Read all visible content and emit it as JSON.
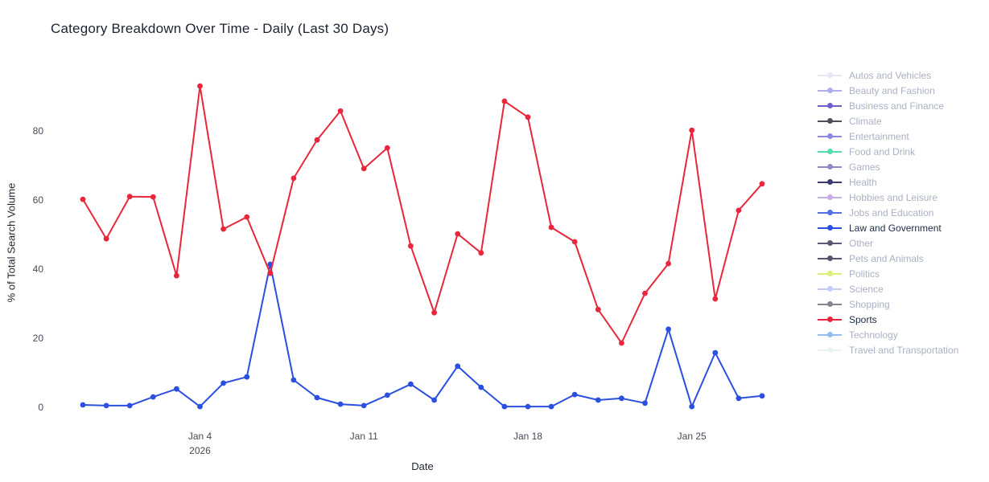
{
  "title": "Category Breakdown Over Time - Daily (Last 30 Days)",
  "chart_data": {
    "type": "line",
    "title": "Category Breakdown Over Time - Daily (Last 30 Days)",
    "xlabel": "Date",
    "ylabel": "% of Total Search Volume",
    "grid": false,
    "legend_position": "right",
    "ylim": [
      0,
      95
    ],
    "yticks": [
      0,
      20,
      40,
      60,
      80
    ],
    "x": [
      "Dec 30",
      "Dec 31",
      "Jan 1",
      "Jan 2",
      "Jan 3",
      "Jan 4",
      "Jan 5",
      "Jan 6",
      "Jan 7",
      "Jan 8",
      "Jan 9",
      "Jan 10",
      "Jan 11",
      "Jan 12",
      "Jan 13",
      "Jan 14",
      "Jan 15",
      "Jan 16",
      "Jan 17",
      "Jan 18",
      "Jan 19",
      "Jan 20",
      "Jan 21",
      "Jan 22",
      "Jan 23",
      "Jan 24",
      "Jan 25",
      "Jan 26",
      "Jan 27",
      "Jan 28"
    ],
    "xticks": [
      {
        "index": 5,
        "lines": [
          "Jan 4",
          "2026"
        ]
      },
      {
        "index": 12,
        "lines": [
          "Jan 11"
        ]
      },
      {
        "index": 19,
        "lines": [
          "Jan 18"
        ]
      },
      {
        "index": 26,
        "lines": [
          "Jan 25"
        ]
      }
    ],
    "series": [
      {
        "name": "Law and Government",
        "color": "#2b4fe0",
        "values": [
          0.7,
          0.5,
          0.5,
          3.0,
          5.3,
          0.2,
          7.0,
          8.8,
          41.4,
          7.9,
          2.8,
          0.9,
          0.5,
          3.5,
          6.7,
          2.1,
          11.9,
          5.8,
          0.2,
          0.2,
          0.2,
          3.7,
          2.1,
          2.6,
          1.2,
          22.6,
          0.2,
          15.8,
          2.6,
          3.3
        ]
      },
      {
        "name": "Sports",
        "color": "#e8273c",
        "values": [
          60.2,
          48.8,
          61.0,
          60.9,
          38.1,
          93.0,
          51.6,
          55.1,
          38.8,
          66.3,
          77.4,
          85.8,
          69.1,
          75.1,
          46.7,
          27.4,
          50.2,
          44.7,
          88.6,
          84.0,
          52.1,
          47.9,
          28.3,
          18.6,
          33.0,
          41.6,
          80.2,
          31.4,
          57.0,
          64.7
        ]
      }
    ],
    "legend": [
      {
        "label": "Autos and Vehicles",
        "color": "#e6e6f7",
        "active": false
      },
      {
        "label": "Beauty and Fashion",
        "color": "#aeaeee",
        "active": false
      },
      {
        "label": "Business and Finance",
        "color": "#6d5fc9",
        "active": false
      },
      {
        "label": "Climate",
        "color": "#4e4e5c",
        "active": false
      },
      {
        "label": "Entertainment",
        "color": "#8b88e6",
        "active": false
      },
      {
        "label": "Food and Drink",
        "color": "#55dcab",
        "active": false
      },
      {
        "label": "Games",
        "color": "#8d89c4",
        "active": false
      },
      {
        "label": "Health",
        "color": "#3c3c72",
        "active": false
      },
      {
        "label": "Hobbies and Leisure",
        "color": "#c7ade9",
        "active": false
      },
      {
        "label": "Jobs and Education",
        "color": "#5371e2",
        "active": false
      },
      {
        "label": "Law and Government",
        "color": "#2b4fe0",
        "active": true
      },
      {
        "label": "Other",
        "color": "#5c5875",
        "active": false
      },
      {
        "label": "Pets and Animals",
        "color": "#565670",
        "active": false
      },
      {
        "label": "Politics",
        "color": "#dfee79",
        "active": false
      },
      {
        "label": "Science",
        "color": "#c2cef3",
        "active": false
      },
      {
        "label": "Shopping",
        "color": "#85858f",
        "active": false
      },
      {
        "label": "Sports",
        "color": "#e8273c",
        "active": true
      },
      {
        "label": "Technology",
        "color": "#95bdee",
        "active": false
      },
      {
        "label": "Travel and Transportation",
        "color": "#eaf4ef",
        "active": false
      }
    ],
    "legend_text_colors": {
      "active": "#1e2b45",
      "inactive": "#aab1c2"
    },
    "tick_label_color": "#444a57"
  }
}
